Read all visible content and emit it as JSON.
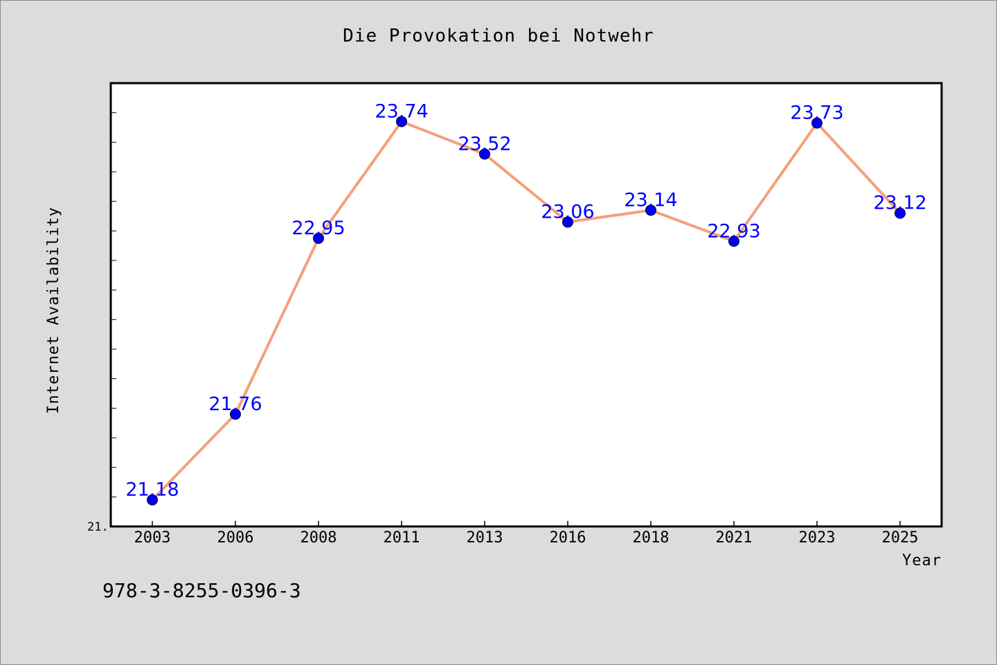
{
  "chart_data": {
    "type": "line",
    "title": "Die Provokation bei Notwehr",
    "xlabel": "Year",
    "ylabel": "Internet Availability",
    "categories": [
      "2003",
      "2006",
      "2008",
      "2011",
      "2013",
      "2016",
      "2018",
      "2021",
      "2023",
      "2025"
    ],
    "series": [
      {
        "values": [
          21.18,
          21.76,
          22.95,
          23.74,
          23.52,
          23.06,
          23.14,
          22.93,
          23.73,
          23.12
        ],
        "labels": [
          "21.18",
          "21.76",
          "22.95",
          "23.74",
          "23.52",
          "23.06",
          "23.14",
          "22.93",
          "23.73",
          "23.12"
        ]
      }
    ],
    "ylim": [
      21.0,
      24.0
    ],
    "ytick_labels": [
      "21."
    ],
    "grid": false,
    "legend": "none",
    "colors": {
      "line": "#f4a07a",
      "marker": "#0000ee",
      "data_label": "#0000ff",
      "plot_background": "#ffffff",
      "page_background": "#dcdcdc"
    }
  },
  "footer": {
    "isbn": "978-3-8255-0396-3"
  }
}
